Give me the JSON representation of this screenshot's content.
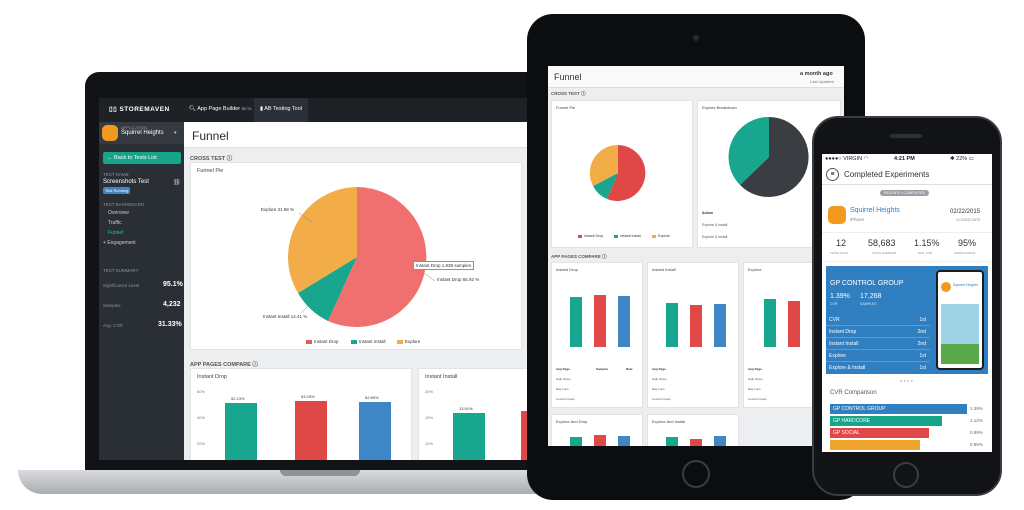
{
  "laptop": {
    "brand": "STOREMAVEN",
    "nav": [
      {
        "label": "App Page Builder",
        "badge": "BETA"
      },
      {
        "label": "AB Testing Tool"
      }
    ],
    "app_label": "APPLICATION",
    "app_name": "Squirrel Heights",
    "app_platform": "iPhone",
    "back_button": "Back to Tests List",
    "test_name_label": "TEST NAME",
    "test_name": "Screenshots Test",
    "test_status": "Test Running",
    "dashboard_label": "TEST DASHBOARD",
    "dashboard_items": [
      "Overview",
      "Traffic",
      "Funnel",
      "Engagement"
    ],
    "summary_label": "TEST SUMMARY",
    "summary": [
      {
        "label": "Significance Level",
        "value": "95.1%"
      },
      {
        "label": "Samples",
        "value": "4,232"
      },
      {
        "label": "Avg. CVR",
        "value": "31.33%"
      }
    ],
    "page_title": "Funnel",
    "cross_test_label": "CROSS TEST",
    "pie_title": "Funnel Pie",
    "pie_labels": {
      "explore": "Explore 31.98 %",
      "drop": "Instant Drop 55.92 %",
      "install": "Instant Install 14.41 %",
      "tooltip": "Instant Drop 1,938 samples"
    },
    "legend": [
      "Instant Drop",
      "Instant Install",
      "Explore"
    ],
    "app_pages_label": "APP PAGES COMPARE",
    "bar_cards": [
      {
        "title": "Instant Drop",
        "y_ticks": [
          "60%",
          "40%",
          "20%"
        ],
        "values": [
          "52.13%",
          "53.29%",
          "52.89%"
        ]
      },
      {
        "title": "Instant Install",
        "y_ticks": [
          "20%",
          "15%",
          "10%"
        ],
        "values": [
          "13.91%"
        ]
      }
    ]
  },
  "tablet": {
    "title": "Funnel",
    "updated": "a month ago",
    "updated_sub": "Last Updated",
    "cross_test": "CROSS TEST",
    "pie1_title": "Funnel Pie",
    "pie2_title": "Explore Breakdown",
    "pie2_table_headers": [
      "Action",
      "Samples"
    ],
    "pie2_table_rows": [
      [
        "Explore & Install",
        "157"
      ],
      [
        "Explore & Install",
        "379"
      ]
    ],
    "legend": [
      "Instant Drop",
      "Instant Install",
      "Explore"
    ],
    "app_pages": "APP PAGES COMPARE",
    "cards": [
      {
        "title": "Instant Drop",
        "values": [
          "52.13%",
          "53.29%",
          "52.89%"
        ]
      },
      {
        "title": "Instant Install",
        "values": [
          "13.91%",
          "13.47%",
          "13.50%"
        ]
      },
      {
        "title": "Explore",
        "values": [
          "33.96%",
          "33.24%",
          "33.61%"
        ]
      }
    ],
    "table_headers": [
      "App Page",
      "Samples",
      "Rate"
    ],
    "table_rows": [
      [
        "High Score",
        "",
        ""
      ],
      [
        "Bug Lens",
        "",
        ""
      ],
      [
        "Control Group",
        "",
        ""
      ]
    ],
    "cards2": [
      "Explore And Drop",
      "Explore And Install"
    ]
  },
  "phone": {
    "carrier": "VIRGIN",
    "time": "4:21 PM",
    "battery": "22%",
    "header": "Completed Experiments",
    "pill": "RECENTLY COMPLETED",
    "app_name": "Squirrel Heights",
    "app_platform": "iPhone",
    "date": "02/22/2015",
    "date_label": "CLOSED DATE",
    "stats": [
      {
        "value": "12",
        "label": "TOTAL DAYS"
      },
      {
        "value": "58,683",
        "label": "TOTAL SAMPLES"
      },
      {
        "value": "1.15%",
        "label": "AVG. CVR"
      },
      {
        "value": "95%",
        "label": "SIGNIFICANCE"
      }
    ],
    "group_title": "GP CONTROL GROUP",
    "group_cvr": "1.39%",
    "group_cvr_label": "CVR",
    "group_samples": "17,268",
    "group_samples_label": "SAMPLES",
    "mini_app": "Squirrel Heights",
    "ranks": [
      {
        "label": "CVR",
        "rank": "1st"
      },
      {
        "label": "Instant Drop",
        "rank": "2nd"
      },
      {
        "label": "Instant Install",
        "rank": "2nd"
      },
      {
        "label": "Explore",
        "rank": "1st"
      },
      {
        "label": "Explore & Install",
        "rank": "1st"
      }
    ],
    "cvr_title": "CVR Comparison",
    "cvr_rows": [
      {
        "label": "GP CONTROL GROUP",
        "value": "1.39%",
        "fraction": 0.76,
        "color": "#2f7fc1"
      },
      {
        "label": "GP HARDCORE",
        "value": "1.12%",
        "fraction": 0.62,
        "color": "#17a589"
      },
      {
        "label": "GP SOCIAL",
        "value": "0.99%",
        "fraction": 0.55,
        "color": "#e04848"
      },
      {
        "label": "",
        "value": "0.95%",
        "fraction": 0.5,
        "color": "#f0a32d"
      }
    ]
  },
  "colors": {
    "drop": "#ea5a57",
    "install": "#18a68e",
    "explore": "#f2ac48",
    "blue": "#3f86c6",
    "dark": "#3a3d42"
  }
}
